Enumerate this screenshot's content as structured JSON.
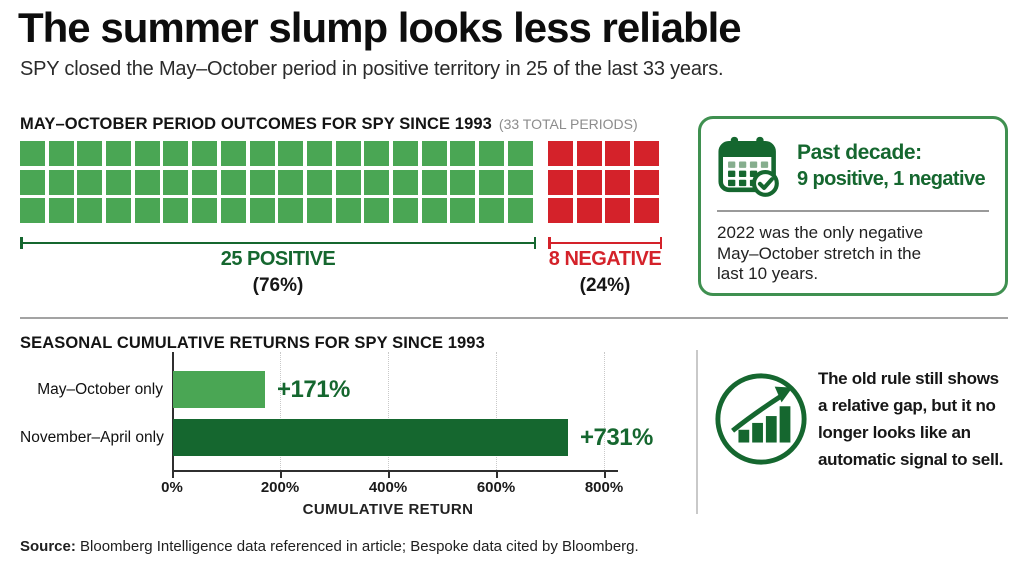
{
  "page": {
    "title": "The summer slump looks less reliable",
    "subtitle": "SPY closed the May–October period in positive territory in 25 of the last 33 years."
  },
  "colors": {
    "positive_green": "#4aa654",
    "negative_red": "#d4222a",
    "dark_green": "#15672f",
    "card_border_green": "#3f9050"
  },
  "waffle_section": {
    "heading": "MAY–OCTOBER PERIOD OUTCOMES FOR SPY SINCE 1993",
    "note": "(33 TOTAL PERIODS)",
    "positive": {
      "label": "25 POSITIVE",
      "pct": "(76%)"
    },
    "negative": {
      "label": "8 NEGATIVE",
      "pct": "(24%)"
    }
  },
  "decade_box": {
    "title": "Past decade:",
    "subtitle": "9 positive, 1 negative",
    "lines": [
      "2022 was the only negative",
      "May–October stretch in the",
      "last 10 years."
    ]
  },
  "returns_section": {
    "heading": "SEASONAL CUMULATIVE RETURNS FOR SPY SINCE 1993",
    "xlabel": "CUMULATIVE RETURN"
  },
  "insight": {
    "lines": [
      "The old rule still shows",
      "a relative gap, but it no",
      "longer looks like an",
      "automatic signal to sell."
    ]
  },
  "footer": {
    "source_label": "Source:",
    "source_text": " Bloomberg Intelligence data referenced in article; Bespoke data cited by Bloomberg."
  },
  "chart_data": [
    {
      "type": "waffle",
      "title": "MAY–OCTOBER PERIOD OUTCOMES FOR SPY SINCE 1993 (33 TOTAL PERIODS)",
      "categories": [
        "Positive",
        "Negative"
      ],
      "values": [
        25,
        8
      ],
      "percentages": [
        76,
        24
      ],
      "total_periods": 33,
      "colors": {
        "positive": "#4aa654",
        "negative": "#d4222a"
      },
      "display_grid": {
        "rows": 3,
        "positive_columns": 18,
        "negative_columns": 4
      }
    },
    {
      "type": "bar",
      "orientation": "horizontal",
      "title": "SEASONAL CUMULATIVE RETURNS FOR SPY SINCE 1993",
      "categories": [
        "May–October only",
        "November–April only"
      ],
      "values": [
        171,
        731
      ],
      "value_labels": [
        "+171%",
        "+731%"
      ],
      "bar_colors": [
        "#4aa654",
        "#15672f"
      ],
      "xlabel": "CUMULATIVE RETURN",
      "xlim": [
        0,
        800
      ],
      "x_ticks": [
        0,
        200,
        400,
        600,
        800
      ],
      "x_tick_labels": [
        "0%",
        "200%",
        "400%",
        "600%",
        "800%"
      ],
      "grid": "dotted-vertical",
      "legend": "none"
    }
  ]
}
